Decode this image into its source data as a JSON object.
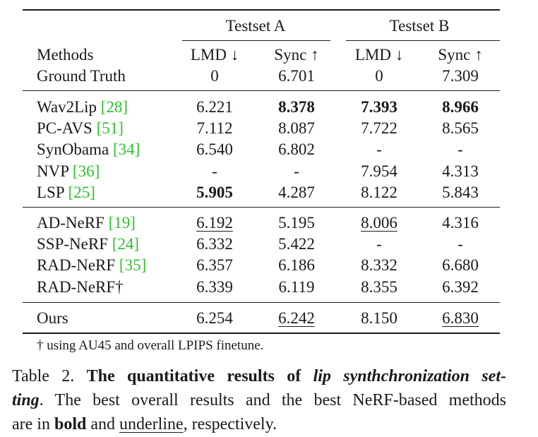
{
  "table": {
    "groups": [
      "Testset A",
      "Testset B"
    ],
    "metric_headers": [
      "LMD ↓",
      "Sync ↑",
      "LMD ↓",
      "Sync ↑"
    ],
    "methods_header": "Methods",
    "ground_truth": {
      "label": "Ground Truth",
      "values": [
        "0",
        "6.701",
        "0",
        "7.309"
      ]
    },
    "sections": [
      [
        {
          "name": "Wav2Lip",
          "cite": "[28]",
          "values": [
            "6.221",
            "8.378",
            "7.393",
            "8.966"
          ],
          "bold": [
            false,
            true,
            true,
            true
          ],
          "underline": [
            false,
            false,
            false,
            false
          ]
        },
        {
          "name": "PC-AVS",
          "cite": "[51]",
          "values": [
            "7.112",
            "8.087",
            "7.722",
            "8.565"
          ],
          "bold": [
            false,
            false,
            false,
            false
          ],
          "underline": [
            false,
            false,
            false,
            false
          ]
        },
        {
          "name": "SynObama",
          "cite": "[34]",
          "values": [
            "6.540",
            "6.802",
            "-",
            "-"
          ],
          "bold": [
            false,
            false,
            false,
            false
          ],
          "underline": [
            false,
            false,
            false,
            false
          ]
        },
        {
          "name": "NVP",
          "cite": "[36]",
          "values": [
            "-",
            "-",
            "7.954",
            "4.313"
          ],
          "bold": [
            false,
            false,
            false,
            false
          ],
          "underline": [
            false,
            false,
            false,
            false
          ]
        },
        {
          "name": "LSP",
          "cite": "[25]",
          "values": [
            "5.905",
            "4.287",
            "8.122",
            "5.843"
          ],
          "bold": [
            true,
            false,
            false,
            false
          ],
          "underline": [
            false,
            false,
            false,
            false
          ]
        }
      ],
      [
        {
          "name": "AD-NeRF",
          "cite": "[19]",
          "values": [
            "6.192",
            "5.195",
            "8.006",
            "4.316"
          ],
          "bold": [
            false,
            false,
            false,
            false
          ],
          "underline": [
            true,
            false,
            true,
            false
          ]
        },
        {
          "name": "SSP-NeRF",
          "cite": "[24]",
          "values": [
            "6.332",
            "5.422",
            "-",
            "-"
          ],
          "bold": [
            false,
            false,
            false,
            false
          ],
          "underline": [
            false,
            false,
            false,
            false
          ]
        },
        {
          "name": "RAD-NeRF",
          "cite": "[35]",
          "values": [
            "6.357",
            "6.186",
            "8.332",
            "6.680"
          ],
          "bold": [
            false,
            false,
            false,
            false
          ],
          "underline": [
            false,
            false,
            false,
            false
          ]
        },
        {
          "name": "RAD-NeRF†",
          "cite": "",
          "values": [
            "6.339",
            "6.119",
            "8.355",
            "6.392"
          ],
          "bold": [
            false,
            false,
            false,
            false
          ],
          "underline": [
            false,
            false,
            false,
            false
          ]
        }
      ],
      [
        {
          "name": "Ours",
          "cite": "",
          "values": [
            "6.254",
            "6.242",
            "8.150",
            "6.830"
          ],
          "bold": [
            false,
            false,
            false,
            false
          ],
          "underline": [
            false,
            true,
            false,
            true
          ]
        }
      ]
    ],
    "footnote": "† using AU45 and overall LPIPS finetune."
  },
  "caption": {
    "label": "Table 2.",
    "bold_a": "The quantitative results of",
    "italic_bold": "lip synthchronization set-",
    "italic_bold_2": "ting",
    "text_b": ". The best overall results and the best NeRF-based methods",
    "text_c": "are in",
    "bold_word": "bold",
    "text_d": "and",
    "underline_word": "underline",
    "text_e": ", respectively."
  }
}
